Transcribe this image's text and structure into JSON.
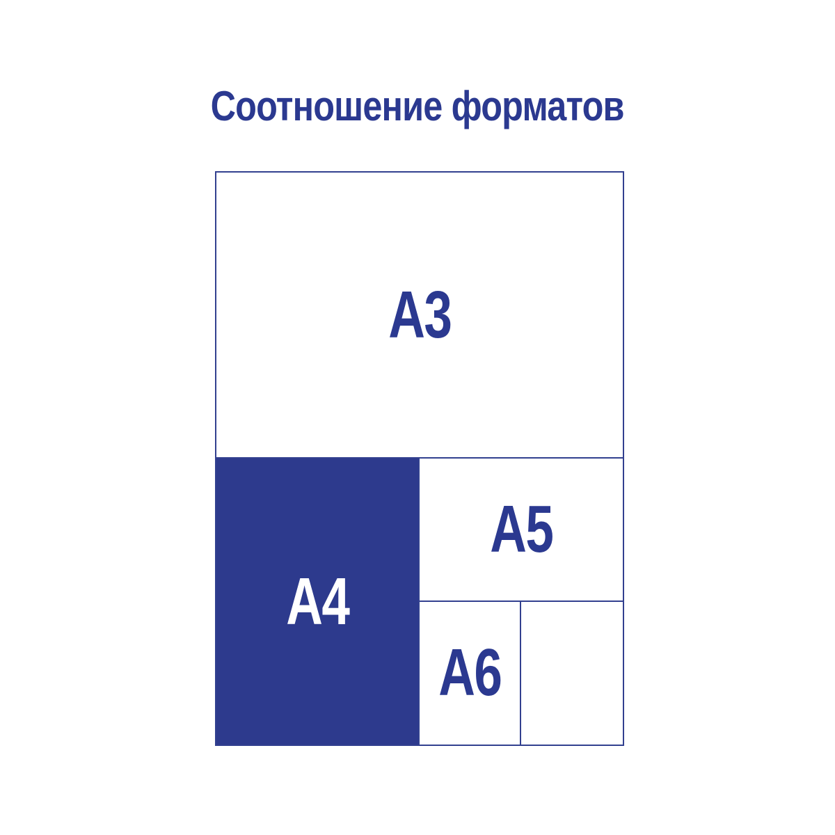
{
  "title": "Соотношение форматов",
  "colors": {
    "accent": "#2b3990",
    "fill_a4": "#2d3a8d",
    "border": "#32408f",
    "background": "#ffffff"
  },
  "diagram": {
    "description": "Nested paper size comparison chart",
    "a3": {
      "label": "A3"
    },
    "a4": {
      "label": "A4"
    },
    "a5": {
      "label": "A5"
    },
    "a6": {
      "label": "A6"
    }
  }
}
